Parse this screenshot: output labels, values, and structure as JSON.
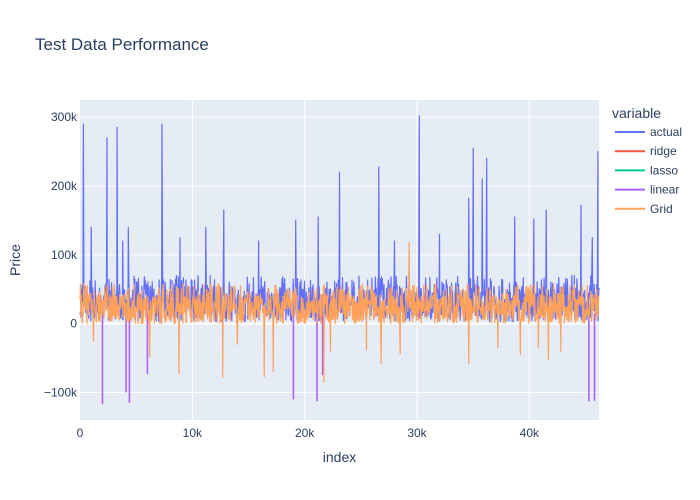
{
  "chart_data": {
    "type": "line",
    "title": "Test Data Performance",
    "xlabel": "index",
    "ylabel": "Price",
    "xlim": [
      0,
      46200
    ],
    "ylim": [
      -140000,
      325000
    ],
    "xticks": [
      0,
      10000,
      20000,
      30000,
      40000
    ],
    "xtick_labels": [
      "0",
      "10k",
      "20k",
      "30k",
      "40k"
    ],
    "yticks": [
      -100000,
      0,
      100000,
      200000,
      300000
    ],
    "ytick_labels": [
      "−100k",
      "0",
      "100k",
      "200k",
      "300k"
    ],
    "grid": true,
    "legend": {
      "title": "variable",
      "position": "top-right"
    },
    "series": [
      {
        "name": "actual",
        "color": "#636efa",
        "base": {
          "mean": 32000,
          "min": 3000,
          "max": 70000
        },
        "spikes": [
          [
            300,
            290000
          ],
          [
            1000,
            140000
          ],
          [
            2400,
            270000
          ],
          [
            3300,
            285000
          ],
          [
            3800,
            120000
          ],
          [
            4300,
            140000
          ],
          [
            7300,
            290000
          ],
          [
            8900,
            125000
          ],
          [
            11200,
            140000
          ],
          [
            12800,
            165000
          ],
          [
            15900,
            120000
          ],
          [
            19200,
            150000
          ],
          [
            21200,
            155000
          ],
          [
            23100,
            220000
          ],
          [
            26600,
            228000
          ],
          [
            28000,
            120000
          ],
          [
            30200,
            302000
          ],
          [
            32000,
            130000
          ],
          [
            34600,
            182000
          ],
          [
            35000,
            255000
          ],
          [
            35800,
            210000
          ],
          [
            36200,
            240000
          ],
          [
            38700,
            155000
          ],
          [
            40400,
            152000
          ],
          [
            41500,
            165000
          ],
          [
            44600,
            172000
          ],
          [
            45600,
            125000
          ],
          [
            46100,
            250000
          ]
        ]
      },
      {
        "name": "ridge",
        "color": "#ef553b"
      },
      {
        "name": "lasso",
        "color": "#00cc96"
      },
      {
        "name": "linear",
        "color": "#ab63fa",
        "dips": [
          [
            2000,
            -117000
          ],
          [
            4100,
            -100000
          ],
          [
            4400,
            -115000
          ],
          [
            6000,
            -73000
          ],
          [
            19000,
            -110000
          ],
          [
            21100,
            -113000
          ],
          [
            21600,
            -75000
          ],
          [
            45300,
            -113000
          ],
          [
            45800,
            -112000
          ]
        ]
      },
      {
        "name": "Grid",
        "color": "#ffa15a",
        "base": {
          "mean": 28000,
          "min": 0,
          "max": 58000
        },
        "dips": [
          [
            1200,
            -25000
          ],
          [
            6200,
            -48000
          ],
          [
            8800,
            -73000
          ],
          [
            12700,
            -78000
          ],
          [
            14000,
            -30000
          ],
          [
            16400,
            -77000
          ],
          [
            17200,
            -70000
          ],
          [
            21700,
            -85000
          ],
          [
            22300,
            -40000
          ],
          [
            25500,
            -38000
          ],
          [
            26800,
            -58000
          ],
          [
            28500,
            -44000
          ],
          [
            34600,
            -58000
          ],
          [
            37200,
            -35000
          ],
          [
            39200,
            -45000
          ],
          [
            40800,
            -35000
          ],
          [
            41700,
            -52000
          ],
          [
            42800,
            -40000
          ]
        ],
        "spikes": [
          [
            29300,
            118000
          ]
        ]
      }
    ]
  }
}
